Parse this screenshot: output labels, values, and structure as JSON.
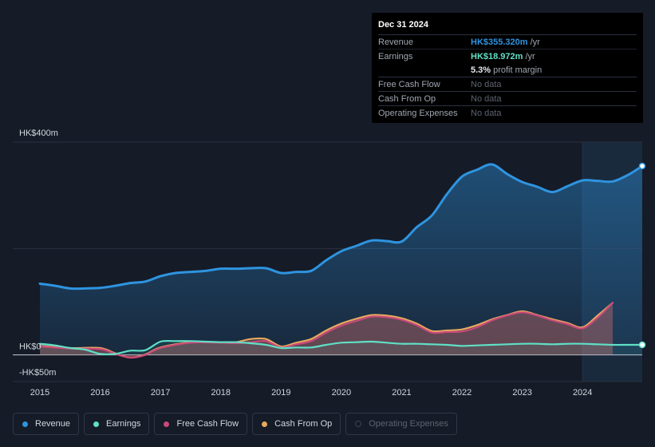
{
  "tooltip": {
    "date": "Dec 31 2024",
    "rows": {
      "revenue": {
        "label": "Revenue",
        "value": "HK$355.320m",
        "suffix": "/yr"
      },
      "earnings": {
        "label": "Earnings",
        "value": "HK$18.972m",
        "suffix": "/yr"
      },
      "margin": {
        "value": "5.3%",
        "text": "profit margin"
      },
      "fcf": {
        "label": "Free Cash Flow",
        "value": "No data"
      },
      "cfo": {
        "label": "Cash From Op",
        "value": "No data"
      },
      "opex": {
        "label": "Operating Expenses",
        "value": "No data"
      }
    }
  },
  "legend": {
    "revenue": "Revenue",
    "earnings": "Earnings",
    "fcf": "Free Cash Flow",
    "cfo": "Cash From Op",
    "opex": "Operating Expenses"
  },
  "colors": {
    "revenue": "#2e94e0",
    "earnings": "#5fe0c6",
    "fcf": "#c9497a",
    "cfo": "#e8a860",
    "opex": "#2b3140"
  },
  "chart_data": {
    "type": "area",
    "title": "",
    "xlabel": "",
    "ylabel": "",
    "ylim": [
      -50,
      400
    ],
    "y_tick_labels": [
      {
        "value": 400,
        "label": "HK$400m"
      },
      {
        "value": 0,
        "label": "HK$0"
      },
      {
        "value": -50,
        "label": "-HK$50m"
      }
    ],
    "x_ticks": [
      2015,
      2016,
      2017,
      2018,
      2019,
      2020,
      2021,
      2022,
      2023,
      2024
    ],
    "xlim": [
      2014.55,
      2024.99
    ],
    "highlight_start": 2024.0,
    "series": [
      {
        "name": "Revenue",
        "key": "revenue",
        "x": [
          2015.0,
          2015.25,
          2015.5,
          2015.75,
          2016.0,
          2016.25,
          2016.5,
          2016.75,
          2017.0,
          2017.25,
          2017.5,
          2017.75,
          2018.0,
          2018.25,
          2018.5,
          2018.75,
          2019.0,
          2019.25,
          2019.5,
          2019.75,
          2020.0,
          2020.25,
          2020.5,
          2020.75,
          2021.0,
          2021.25,
          2021.5,
          2021.75,
          2022.0,
          2022.25,
          2022.5,
          2022.75,
          2023.0,
          2023.25,
          2023.5,
          2023.75,
          2024.0,
          2024.25,
          2024.5,
          2024.75,
          2024.99
        ],
        "values": [
          134,
          130,
          125,
          125,
          126,
          130,
          135,
          138,
          148,
          154,
          156,
          158,
          162,
          162,
          163,
          163,
          154,
          156,
          158,
          178,
          195,
          205,
          215,
          214,
          213,
          240,
          262,
          302,
          335,
          348,
          358,
          340,
          325,
          316,
          306,
          317,
          328,
          327,
          326,
          338,
          355
        ]
      },
      {
        "name": "Earnings",
        "key": "earnings",
        "x": [
          2015.0,
          2015.25,
          2015.5,
          2015.75,
          2016.0,
          2016.25,
          2016.5,
          2016.75,
          2017.0,
          2017.25,
          2017.5,
          2017.75,
          2018.0,
          2018.25,
          2018.5,
          2018.75,
          2019.0,
          2019.25,
          2019.5,
          2019.75,
          2020.0,
          2020.25,
          2020.5,
          2020.75,
          2021.0,
          2021.25,
          2021.5,
          2021.75,
          2022.0,
          2022.25,
          2022.5,
          2022.75,
          2023.0,
          2023.25,
          2023.5,
          2023.75,
          2024.0,
          2024.25,
          2024.5,
          2024.75,
          2024.99
        ],
        "values": [
          21,
          18,
          13,
          10,
          2,
          2,
          8,
          9,
          25,
          26,
          26,
          25,
          24,
          24,
          22,
          19,
          13,
          14,
          14,
          19,
          23,
          24,
          25,
          23,
          21,
          21,
          20,
          19,
          17,
          18,
          19,
          20,
          21,
          21,
          20,
          21,
          21,
          20,
          19,
          19,
          19
        ]
      },
      {
        "name": "Free Cash Flow",
        "key": "fcf",
        "x": [
          2015.0,
          2015.5,
          2016.0,
          2016.25,
          2016.5,
          2016.75,
          2017.0,
          2017.5,
          2018.0,
          2018.25,
          2018.5,
          2018.75,
          2019.0,
          2019.25,
          2019.5,
          2019.75,
          2020.0,
          2020.25,
          2020.5,
          2020.75,
          2021.0,
          2021.25,
          2021.5,
          2021.75,
          2022.0,
          2022.25,
          2022.5,
          2022.75,
          2023.0,
          2023.25,
          2023.5,
          2023.75,
          2024.0,
          2024.25,
          2024.5
        ],
        "values": [
          16,
          12,
          11,
          2,
          -5,
          0,
          13,
          23,
          23,
          22,
          24,
          26,
          14,
          20,
          26,
          42,
          55,
          64,
          72,
          71,
          66,
          56,
          42,
          43,
          44,
          52,
          65,
          74,
          80,
          74,
          65,
          58,
          50,
          70,
          98
        ]
      },
      {
        "name": "Cash From Op",
        "key": "cfo",
        "x": [
          2015.0,
          2015.5,
          2016.0,
          2016.25,
          2016.5,
          2016.75,
          2017.0,
          2017.5,
          2018.0,
          2018.25,
          2018.5,
          2018.75,
          2019.0,
          2019.25,
          2019.5,
          2019.75,
          2020.0,
          2020.25,
          2020.5,
          2020.75,
          2021.0,
          2021.25,
          2021.5,
          2021.75,
          2022.0,
          2022.25,
          2022.5,
          2022.75,
          2023.0,
          2023.25,
          2023.5,
          2023.75,
          2024.0,
          2024.25,
          2024.5
        ],
        "values": [
          17,
          13,
          13,
          3,
          -5,
          1,
          14,
          24,
          24,
          24,
          30,
          30,
          16,
          23,
          30,
          46,
          59,
          68,
          75,
          74,
          69,
          59,
          45,
          46,
          48,
          56,
          67,
          75,
          82,
          75,
          67,
          60,
          52,
          74,
          98
        ]
      }
    ]
  }
}
